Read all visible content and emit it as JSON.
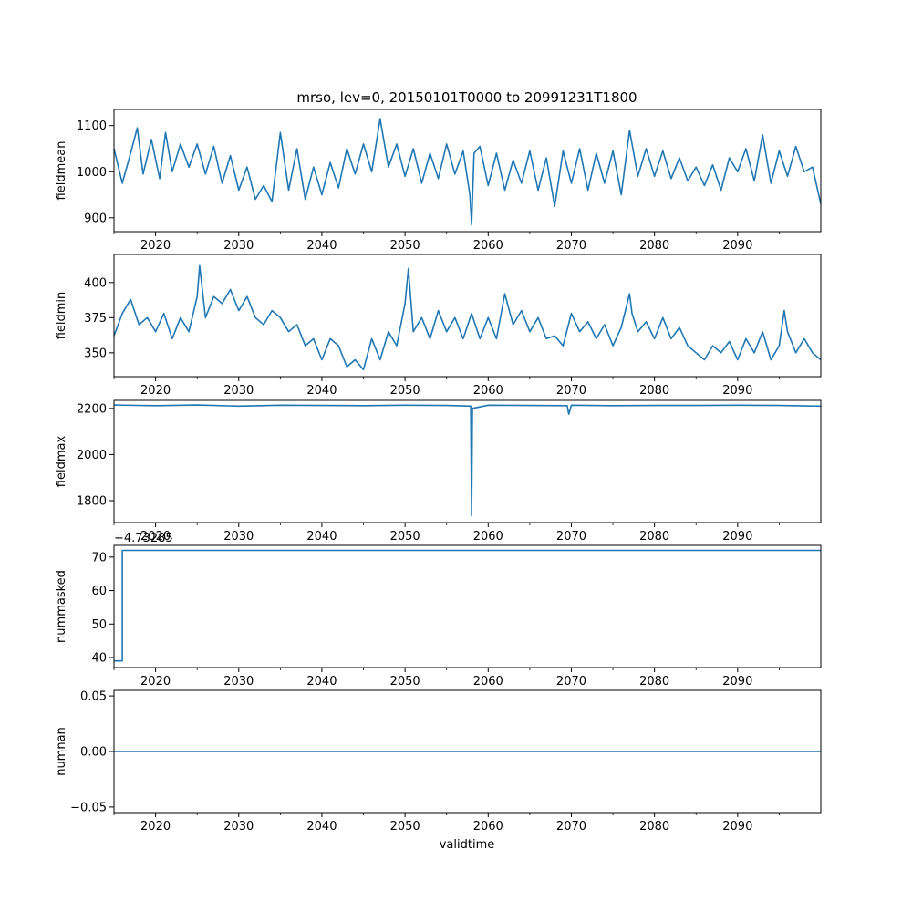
{
  "figure": {
    "title": "mrso, lev=0, 20150101T0000 to 20991231T1800",
    "xlabel": "validtime",
    "line_color": "#1f77b4"
  },
  "chart_data": [
    {
      "type": "line",
      "ylabel": "fieldmean",
      "xlim": [
        2015.0,
        2100.0
      ],
      "ylim": [
        870,
        1135
      ],
      "x_ticks": [
        "2020",
        "2030",
        "2040",
        "2050",
        "2060",
        "2070",
        "2080",
        "2090"
      ],
      "y_ticks": [
        900,
        1000,
        1100
      ],
      "series": [
        {
          "name": "fieldmean",
          "x": [
            2015.0,
            2016.0,
            2017.0,
            2017.8,
            2018.5,
            2019.5,
            2020.5,
            2021.2,
            2022.0,
            2023.0,
            2024.0,
            2025.0,
            2026.0,
            2027.0,
            2028.0,
            2029.0,
            2030.0,
            2031.0,
            2032.0,
            2033.0,
            2034.0,
            2035.0,
            2036.0,
            2037.0,
            2038.0,
            2039.0,
            2040.0,
            2041.0,
            2042.0,
            2043.0,
            2044.0,
            2045.0,
            2046.0,
            2047.0,
            2048.0,
            2049.0,
            2050.0,
            2051.0,
            2052.0,
            2053.0,
            2054.0,
            2055.0,
            2056.0,
            2057.0,
            2057.8,
            2058.0,
            2058.3,
            2059.0,
            2060.0,
            2061.0,
            2062.0,
            2063.0,
            2064.0,
            2065.0,
            2066.0,
            2067.0,
            2068.0,
            2069.0,
            2070.0,
            2071.0,
            2072.0,
            2073.0,
            2074.0,
            2075.0,
            2076.0,
            2077.0,
            2078.0,
            2079.0,
            2080.0,
            2081.0,
            2082.0,
            2083.0,
            2084.0,
            2085.0,
            2086.0,
            2087.0,
            2088.0,
            2089.0,
            2090.0,
            2091.0,
            2092.0,
            2093.0,
            2094.0,
            2095.0,
            2096.0,
            2097.0,
            2098.0,
            2099.0,
            2100.0
          ],
          "values": [
            1050,
            975,
            1040,
            1095,
            995,
            1070,
            985,
            1085,
            1000,
            1060,
            1010,
            1060,
            995,
            1055,
            975,
            1035,
            960,
            1010,
            940,
            970,
            935,
            1085,
            960,
            1050,
            940,
            1010,
            950,
            1020,
            965,
            1050,
            995,
            1060,
            1000,
            1115,
            1010,
            1060,
            990,
            1050,
            975,
            1040,
            985,
            1060,
            995,
            1045,
            950,
            885,
            1040,
            1055,
            970,
            1040,
            960,
            1025,
            975,
            1045,
            960,
            1030,
            925,
            1045,
            975,
            1050,
            960,
            1040,
            975,
            1045,
            950,
            1090,
            990,
            1050,
            990,
            1045,
            985,
            1030,
            980,
            1010,
            970,
            1015,
            960,
            1030,
            1000,
            1050,
            980,
            1080,
            975,
            1045,
            990,
            1055,
            1000,
            1010,
            930
          ]
        }
      ]
    },
    {
      "type": "line",
      "ylabel": "fieldmin",
      "xlim": [
        2015.0,
        2100.0
      ],
      "ylim": [
        333,
        420
      ],
      "x_ticks": [
        "2020",
        "2030",
        "2040",
        "2050",
        "2060",
        "2070",
        "2080",
        "2090"
      ],
      "y_ticks": [
        350,
        375,
        400
      ],
      "series": [
        {
          "name": "fieldmin",
          "x": [
            2015.0,
            2016.0,
            2017.0,
            2018.0,
            2019.0,
            2020.0,
            2021.0,
            2022.0,
            2023.0,
            2024.0,
            2025.0,
            2025.3,
            2026.0,
            2027.0,
            2028.0,
            2029.0,
            2030.0,
            2031.0,
            2032.0,
            2033.0,
            2034.0,
            2035.0,
            2036.0,
            2037.0,
            2038.0,
            2039.0,
            2040.0,
            2041.0,
            2042.0,
            2043.0,
            2044.0,
            2045.0,
            2046.0,
            2047.0,
            2048.0,
            2049.0,
            2050.0,
            2050.4,
            2051.0,
            2052.0,
            2053.0,
            2054.0,
            2055.0,
            2056.0,
            2057.0,
            2058.0,
            2059.0,
            2060.0,
            2061.0,
            2062.0,
            2063.0,
            2064.0,
            2065.0,
            2066.0,
            2067.0,
            2068.0,
            2069.0,
            2070.0,
            2071.0,
            2072.0,
            2073.0,
            2074.0,
            2075.0,
            2076.0,
            2077.0,
            2077.3,
            2078.0,
            2079.0,
            2080.0,
            2081.0,
            2082.0,
            2083.0,
            2084.0,
            2085.0,
            2086.0,
            2087.0,
            2088.0,
            2089.0,
            2090.0,
            2091.0,
            2092.0,
            2093.0,
            2094.0,
            2095.0,
            2095.6,
            2096.0,
            2097.0,
            2098.0,
            2099.0,
            2100.0
          ],
          "values": [
            362,
            378,
            388,
            370,
            375,
            365,
            378,
            360,
            375,
            365,
            390,
            412,
            375,
            390,
            385,
            395,
            380,
            390,
            375,
            370,
            380,
            375,
            365,
            370,
            355,
            360,
            345,
            360,
            355,
            340,
            345,
            338,
            360,
            345,
            365,
            355,
            385,
            410,
            365,
            375,
            360,
            380,
            365,
            375,
            360,
            378,
            360,
            375,
            360,
            392,
            370,
            380,
            365,
            375,
            360,
            362,
            355,
            378,
            365,
            372,
            360,
            370,
            355,
            368,
            392,
            378,
            365,
            372,
            360,
            375,
            360,
            368,
            355,
            350,
            345,
            355,
            350,
            358,
            345,
            360,
            350,
            365,
            345,
            355,
            380,
            365,
            350,
            360,
            350,
            345
          ]
        }
      ]
    },
    {
      "type": "line",
      "ylabel": "fieldmax",
      "xlim": [
        2015.0,
        2100.0
      ],
      "ylim": [
        1705,
        2235
      ],
      "x_ticks": [
        "2020",
        "2030",
        "2040",
        "2050",
        "2060",
        "2070",
        "2080",
        "2090"
      ],
      "y_ticks": [
        1800,
        2000,
        2200
      ],
      "series": [
        {
          "name": "fieldmax",
          "x": [
            2015.0,
            2020.0,
            2025.0,
            2030.0,
            2035.0,
            2040.0,
            2045.0,
            2050.0,
            2055.0,
            2057.9,
            2058.0,
            2058.1,
            2060.0,
            2065.0,
            2069.5,
            2069.7,
            2070.0,
            2075.0,
            2080.0,
            2085.0,
            2090.0,
            2095.0,
            2100.0
          ],
          "values": [
            2215,
            2212,
            2215,
            2210,
            2214,
            2213,
            2212,
            2214,
            2213,
            2210,
            1735,
            2200,
            2214,
            2213,
            2212,
            2175,
            2214,
            2212,
            2213,
            2213,
            2214,
            2213,
            2210
          ]
        }
      ]
    },
    {
      "type": "line",
      "ylabel": "nummasked",
      "offset_label": "+4.73285",
      "xlim": [
        2015.0,
        2100.0
      ],
      "ylim": [
        37,
        73.5
      ],
      "x_ticks": [
        "2020",
        "2030",
        "2040",
        "2050",
        "2060",
        "2070",
        "2080",
        "2090"
      ],
      "y_ticks": [
        40,
        50,
        60,
        70
      ],
      "series": [
        {
          "name": "nummasked",
          "x": [
            2015.0,
            2016.0,
            2016.0,
            2100.0
          ],
          "values": [
            39,
            39,
            72,
            72
          ]
        }
      ]
    },
    {
      "type": "line",
      "ylabel": "numnan",
      "xlim": [
        2015.0,
        2100.0
      ],
      "ylim": [
        -0.055,
        0.055
      ],
      "x_ticks": [
        "2020",
        "2030",
        "2040",
        "2050",
        "2060",
        "2070",
        "2080",
        "2090"
      ],
      "y_ticks": [
        -0.05,
        0.0,
        0.05
      ],
      "y_tick_labels": [
        "−0.05",
        "0.00",
        "0.05"
      ],
      "series": [
        {
          "name": "numnan",
          "x": [
            2015.0,
            2100.0
          ],
          "values": [
            0,
            0
          ]
        }
      ]
    }
  ]
}
